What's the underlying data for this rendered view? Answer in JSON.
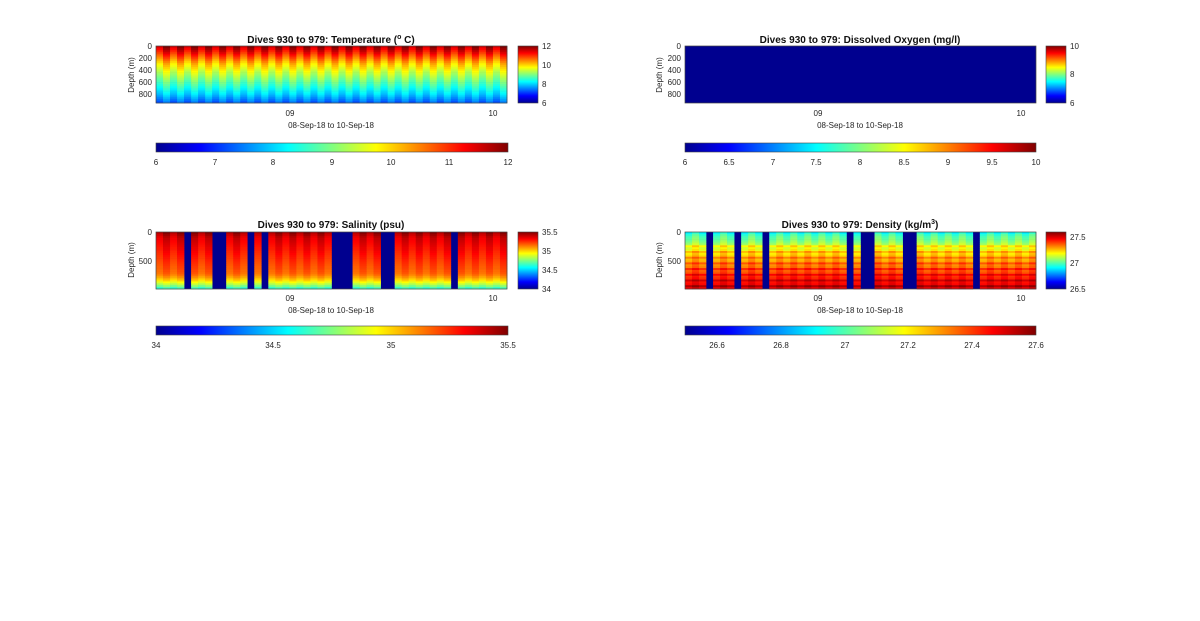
{
  "colormap": [
    "#00008f",
    "#0000ff",
    "#0080ff",
    "#00ffff",
    "#80ff80",
    "#ffff00",
    "#ff8000",
    "#ff0000",
    "#800000"
  ],
  "chart_data": [
    {
      "id": "temperature",
      "type": "heatmap",
      "title": "Dives 930 to 979: Temperature (",
      "title_sup": "o",
      "title_after": " C)",
      "ylabel": "Depth (m)",
      "xlabel": "08-Sep-18 to 10-Sep-18",
      "x_ticks": [
        "09",
        "10"
      ],
      "y_ticks": [
        "0",
        "200",
        "400",
        "600",
        "800"
      ],
      "ylim": [
        0,
        950
      ],
      "clim": [
        6,
        12
      ],
      "colorbar_ticks": [
        "12",
        "10",
        "8",
        "6"
      ],
      "hbar_ticks": [
        "6",
        "7",
        "8",
        "9",
        "10",
        "11",
        "12"
      ],
      "profiles": 50,
      "profile": [
        [
          0,
          11.8
        ],
        [
          100,
          11.2
        ],
        [
          200,
          10.6
        ],
        [
          300,
          10.0
        ],
        [
          400,
          9.6
        ],
        [
          500,
          9.2
        ],
        [
          600,
          8.8
        ],
        [
          700,
          8.4
        ],
        [
          800,
          8.0
        ],
        [
          900,
          7.5
        ],
        [
          950,
          7.3
        ]
      ]
    },
    {
      "id": "oxygen",
      "type": "heatmap",
      "title": "Dives 930 to 979: Dissolved Oxygen (mg/l)",
      "ylabel": "Depth (m)",
      "xlabel": "08-Sep-18 to 10-Sep-18",
      "x_ticks": [
        "09",
        "10"
      ],
      "y_ticks": [
        "0",
        "200",
        "400",
        "600",
        "800"
      ],
      "ylim": [
        0,
        950
      ],
      "clim": [
        6,
        10
      ],
      "colorbar_ticks": [
        "10",
        "8",
        "6"
      ],
      "hbar_ticks": [
        "6",
        "6.5",
        "7",
        "7.5",
        "8",
        "8.5",
        "9",
        "9.5",
        "10"
      ],
      "fill_value": 6
    },
    {
      "id": "salinity",
      "type": "heatmap",
      "title": "Dives 930 to 979: Salinity (psu)",
      "ylabel": "Depth (m)",
      "xlabel": "08-Sep-18 to 10-Sep-18",
      "x_ticks": [
        "09",
        "10"
      ],
      "y_ticks": [
        "0",
        "500"
      ],
      "ylim": [
        0,
        950
      ],
      "clim": [
        34,
        35.5
      ],
      "colorbar_ticks": [
        "35.5",
        "35",
        "34.5",
        "34"
      ],
      "hbar_ticks": [
        "34",
        "34.5",
        "35",
        "35.5"
      ],
      "fill_value": 34,
      "profiles": 50,
      "profile": [
        [
          0,
          35.45
        ],
        [
          100,
          35.35
        ],
        [
          250,
          35.3
        ],
        [
          400,
          35.25
        ],
        [
          550,
          35.2
        ],
        [
          700,
          35.15
        ],
        [
          800,
          35.0
        ],
        [
          880,
          34.8
        ],
        [
          950,
          34.6
        ]
      ]
    },
    {
      "id": "density",
      "type": "heatmap",
      "title": "Dives 930 to 979: Density (kg/m",
      "title_sup": "3",
      "title_after": ")",
      "ylabel": "Depth (m)",
      "xlabel": "08-Sep-18 to 10-Sep-18",
      "x_ticks": [
        "09",
        "10"
      ],
      "y_ticks": [
        "0",
        "500"
      ],
      "ylim": [
        0,
        950
      ],
      "clim": [
        26.5,
        27.6
      ],
      "colorbar_ticks": [
        "27.5",
        "27",
        "26.5"
      ],
      "hbar_ticks": [
        "26.6",
        "26.8",
        "27",
        "27.2",
        "27.4",
        "27.6"
      ],
      "fill_value": 26.5,
      "profiles": 50,
      "profile": [
        [
          0,
          26.9
        ],
        [
          60,
          27.0
        ],
        [
          150,
          27.05
        ],
        [
          250,
          27.15
        ],
        [
          400,
          27.25
        ],
        [
          600,
          27.35
        ],
        [
          800,
          27.45
        ],
        [
          950,
          27.5
        ]
      ]
    }
  ]
}
